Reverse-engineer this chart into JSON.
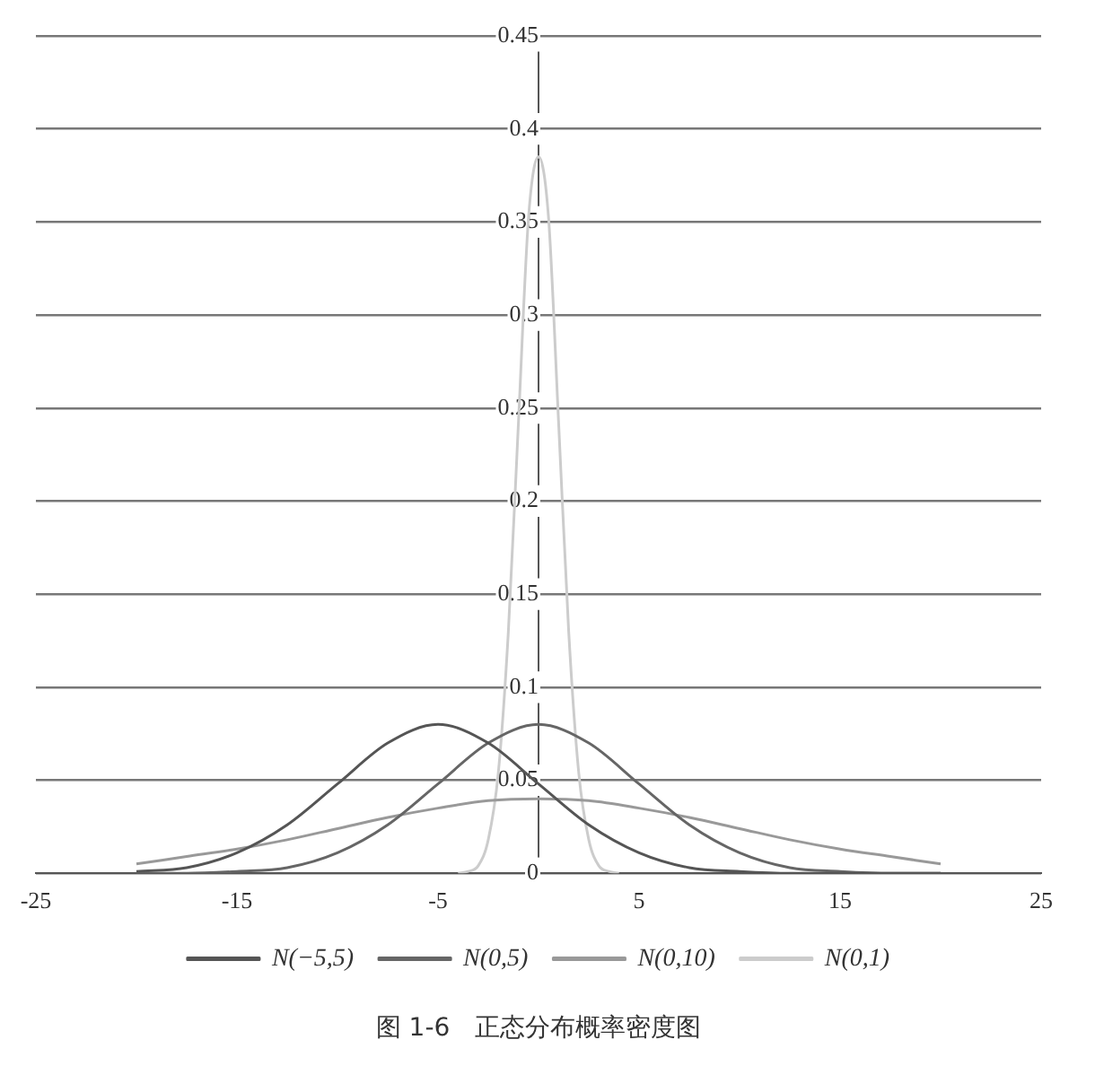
{
  "chart_data": {
    "type": "line",
    "title": "图 1-6　正态分布概率密度图",
    "xlim": [
      -25,
      25
    ],
    "xticks": [
      -25,
      -15,
      -5,
      5,
      15,
      25
    ],
    "ylim": [
      0,
      0.45
    ],
    "yticks": [
      0,
      0.05,
      0.1,
      0.15,
      0.2,
      0.25,
      0.3,
      0.35,
      0.4,
      0.45
    ],
    "grid": "y",
    "legend": "bottom",
    "marker": "none",
    "line_style": "solid",
    "series": [
      {
        "name": "N(−5,5)",
        "color": "#555555",
        "x": [
          -20,
          -17.5,
          -15,
          -12.5,
          -10,
          -7.5,
          -5,
          -2.5,
          0,
          2.5,
          5,
          7.5,
          10,
          12.5,
          15,
          17.5,
          20
        ],
        "values": [
          0.001,
          0.003,
          0.011,
          0.026,
          0.048,
          0.07,
          0.08,
          0.07,
          0.048,
          0.026,
          0.011,
          0.003,
          0.001,
          0.0,
          0.0,
          0.0,
          0.0
        ]
      },
      {
        "name": "N(0,5)",
        "color": "#666666",
        "x": [
          -20,
          -17.5,
          -15,
          -12.5,
          -10,
          -7.5,
          -5,
          -2.5,
          0,
          2.5,
          5,
          7.5,
          10,
          12.5,
          15,
          17.5,
          20
        ],
        "values": [
          0.0,
          0.0,
          0.001,
          0.003,
          0.011,
          0.026,
          0.048,
          0.07,
          0.08,
          0.07,
          0.048,
          0.026,
          0.011,
          0.003,
          0.001,
          0.0,
          0.0
        ]
      },
      {
        "name": "N(0,10)",
        "color": "#999999",
        "x": [
          -20,
          -17.5,
          -15,
          -12.5,
          -10,
          -7.5,
          -5,
          -2.5,
          0,
          2.5,
          5,
          7.5,
          10,
          12.5,
          15,
          17.5,
          20
        ],
        "values": [
          0.005,
          0.009,
          0.013,
          0.018,
          0.024,
          0.03,
          0.035,
          0.039,
          0.04,
          0.039,
          0.035,
          0.03,
          0.024,
          0.018,
          0.013,
          0.009,
          0.005
        ]
      },
      {
        "name": "N(0,1)",
        "color": "#cccccc",
        "x": [
          -4,
          -3.5,
          -3,
          -2.5,
          -2,
          -1.5,
          -1,
          -0.5,
          0,
          0.5,
          1,
          1.5,
          2,
          2.5,
          3,
          3.5,
          4
        ],
        "values": [
          0.0,
          0.001,
          0.004,
          0.018,
          0.054,
          0.13,
          0.242,
          0.352,
          0.385,
          0.352,
          0.242,
          0.13,
          0.054,
          0.018,
          0.004,
          0.001,
          0.0
        ]
      }
    ]
  }
}
